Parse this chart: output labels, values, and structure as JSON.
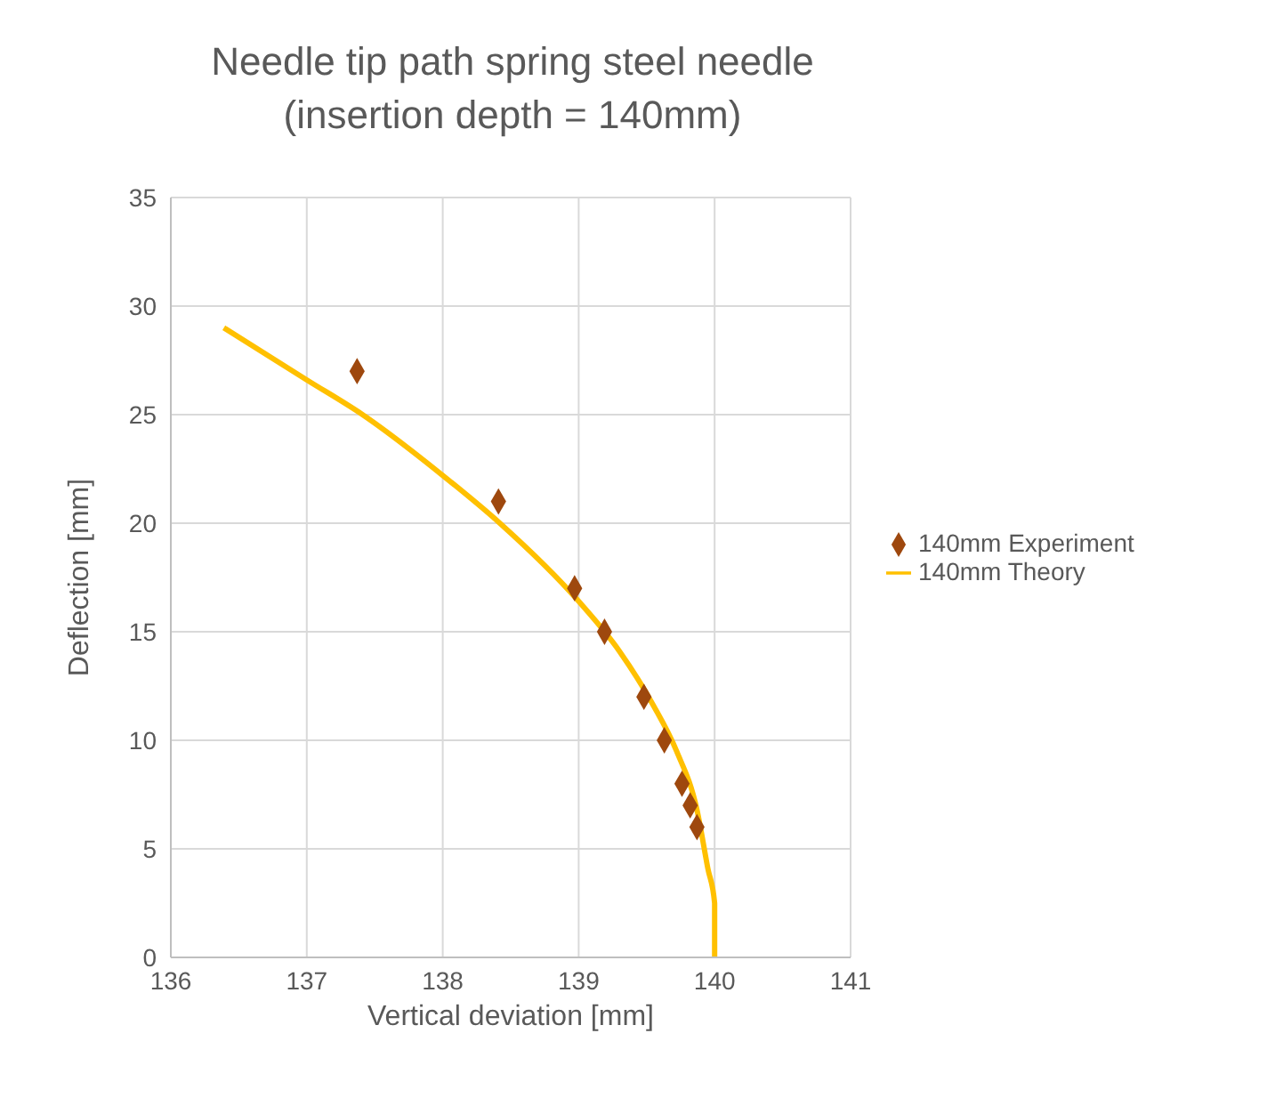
{
  "chart_data": {
    "type": "scatter",
    "title": "Needle tip path spring steel needle\n(insertion depth = 140mm)",
    "xlabel": "Vertical deviation [mm]",
    "ylabel": "Deflection [mm]",
    "xlim": [
      136,
      141
    ],
    "xticks": [
      136,
      137,
      138,
      139,
      140,
      141
    ],
    "ylim": [
      0,
      35
    ],
    "yticks": [
      0,
      5,
      10,
      15,
      20,
      25,
      30,
      35
    ],
    "grid": true,
    "legend": "right",
    "series": [
      {
        "name": "140mm Experiment",
        "marker": "diamond",
        "color": "#9e480e",
        "x": [
          137.37,
          138.41,
          138.97,
          139.19,
          139.48,
          139.63,
          139.76,
          139.82,
          139.87
        ],
        "values": [
          27,
          21,
          17,
          15,
          12,
          10,
          8,
          7,
          6
        ]
      },
      {
        "name": "140mm Theory",
        "type": "line",
        "marker": "none",
        "color": "#ffc000",
        "x": [
          136.39,
          137,
          137.41,
          138,
          138.42,
          139,
          139.3,
          139.55,
          139.72,
          139.87,
          139.95,
          140,
          140
        ],
        "values": [
          29,
          26.6,
          25,
          22.2,
          20,
          16.4,
          14.1,
          11.6,
          9.5,
          6.8,
          4.1,
          2.5,
          0
        ]
      }
    ]
  }
}
